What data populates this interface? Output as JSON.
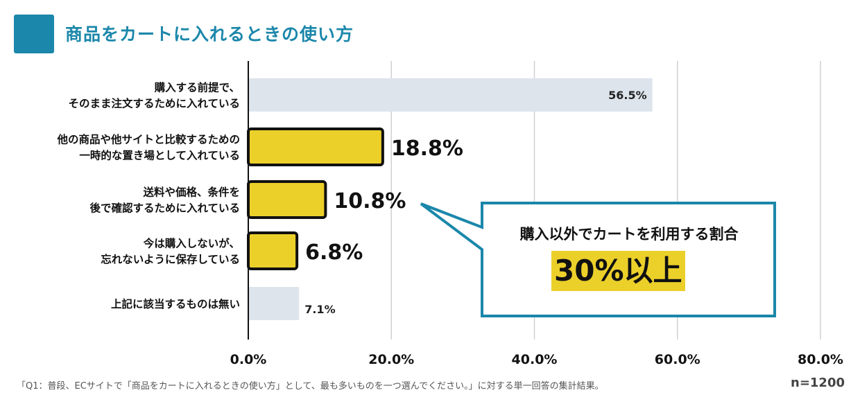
{
  "title": "商品をカートに入れるときの使い方",
  "chart_data": {
    "type": "bar",
    "orientation": "horizontal",
    "categories": [
      [
        "購入する前提で、",
        "そのまま注文するために入れている"
      ],
      [
        "他の商品や他サイトと比較するための",
        "一時的な置き場として入れている"
      ],
      [
        "送料や価格、条件を",
        "後で確認するために入れている"
      ],
      [
        "今は購入しないが、",
        "忘れないように保存している"
      ],
      [
        "上記に該当するものは無い"
      ]
    ],
    "values": [
      56.5,
      18.8,
      10.8,
      6.8,
      7.1
    ],
    "value_labels": [
      "56.5%",
      "18.8%",
      "10.8%",
      "6.8%",
      "7.1%"
    ],
    "highlighted": [
      false,
      true,
      true,
      true,
      false
    ],
    "xlim": [
      0,
      80
    ],
    "xticks": [
      "0.0%",
      "20.0%",
      "40.0%",
      "60.0%",
      "80.0%"
    ],
    "grid": true,
    "colors": {
      "default": "#dde4ec",
      "highlight": "#ecd02a",
      "accent": "#1b87aa"
    }
  },
  "callout": {
    "line1": "購入以外でカートを利用する割合",
    "line2": "30%以上"
  },
  "footnote": "「Q1：普段、ECサイトで「商品をカートに入れるときの使い方」として、最も多いものを一つ選んでください。」に対する単一回答の集計結果。",
  "n_label": "n=1200"
}
